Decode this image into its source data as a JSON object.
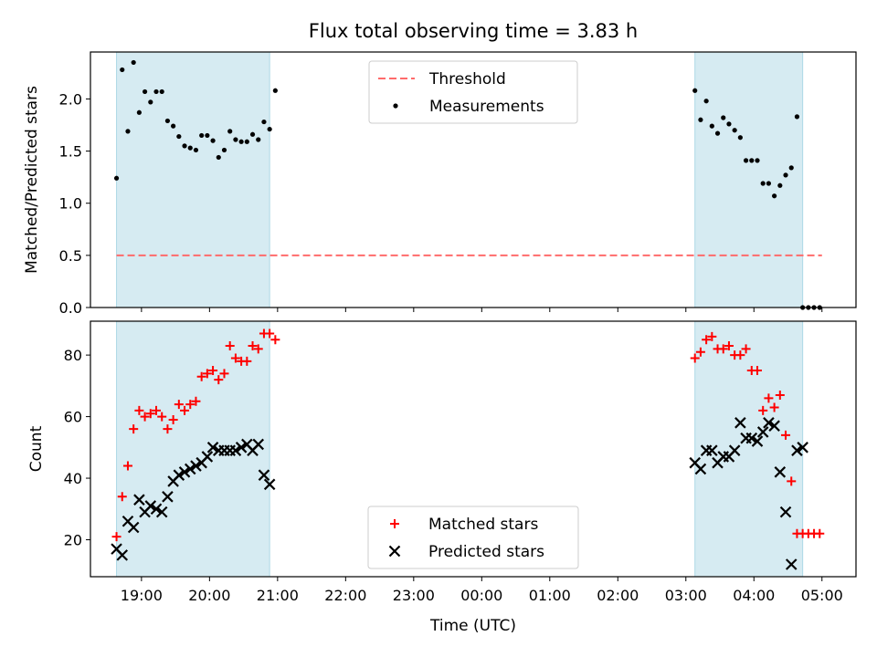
{
  "title": "Flux total observing time = 3.83 h",
  "chart_data": [
    {
      "type": "scatter",
      "ylabel": "Matched/Predicted stars",
      "xlabel": "",
      "ylim": [
        0,
        2.45
      ],
      "yticks": [
        "0.0",
        "0.5",
        "1.0",
        "1.5",
        "2.0"
      ],
      "x_hours_range": [
        "18:15",
        "05:30"
      ],
      "legend_position": "top-center",
      "threshold": {
        "name": "Threshold",
        "value": 0.5,
        "x_start": "18:38",
        "x_end": "05:00",
        "color": "#ff6b6b"
      },
      "series": [
        {
          "name": "Measurements",
          "color": "#000000",
          "marker": "dot",
          "x": [
            "18:38",
            "18:43",
            "18:48",
            "18:53",
            "18:58",
            "19:03",
            "19:08",
            "19:13",
            "19:18",
            "19:23",
            "19:28",
            "19:33",
            "19:38",
            "19:43",
            "19:48",
            "19:53",
            "19:58",
            "20:03",
            "20:08",
            "20:13",
            "20:18",
            "20:23",
            "20:28",
            "20:33",
            "20:38",
            "20:43",
            "20:48",
            "20:53",
            "20:58",
            "03:08",
            "03:13",
            "03:18",
            "03:23",
            "03:28",
            "03:33",
            "03:38",
            "03:43",
            "03:48",
            "03:53",
            "03:58",
            "04:03",
            "04:08",
            "04:13",
            "04:18",
            "04:23",
            "04:28",
            "04:33",
            "04:38",
            "04:43",
            "04:48",
            "04:53",
            "04:58"
          ],
          "y": [
            1.24,
            2.28,
            1.69,
            2.35,
            1.87,
            2.07,
            1.97,
            2.07,
            2.07,
            1.79,
            1.74,
            1.64,
            1.55,
            1.53,
            1.51,
            1.65,
            1.65,
            1.6,
            1.44,
            1.51,
            1.69,
            1.61,
            1.59,
            1.59,
            1.66,
            1.61,
            1.78,
            1.71,
            2.08,
            2.08,
            1.8,
            1.98,
            1.74,
            1.67,
            1.82,
            1.76,
            1.7,
            1.63,
            1.41,
            1.41,
            1.41,
            1.19,
            1.19,
            1.07,
            1.17,
            1.27,
            1.34,
            1.83,
            0.0,
            0.0,
            0.0,
            0.0
          ]
        }
      ]
    },
    {
      "type": "scatter",
      "ylabel": "Count",
      "xlabel": "Time (UTC)",
      "ylim": [
        8,
        91
      ],
      "yticks": [
        "20",
        "40",
        "60",
        "80"
      ],
      "xticks": [
        "19:00",
        "20:00",
        "21:00",
        "22:00",
        "23:00",
        "00:00",
        "01:00",
        "02:00",
        "03:00",
        "04:00",
        "05:00"
      ],
      "legend_position": "bottom-center",
      "series": [
        {
          "name": "Matched stars",
          "color": "#ff0000",
          "marker": "plus",
          "x": [
            "18:38",
            "18:43",
            "18:48",
            "18:53",
            "18:58",
            "19:03",
            "19:08",
            "19:13",
            "19:18",
            "19:23",
            "19:28",
            "19:33",
            "19:38",
            "19:43",
            "19:48",
            "19:53",
            "19:58",
            "20:03",
            "20:08",
            "20:13",
            "20:18",
            "20:23",
            "20:28",
            "20:33",
            "20:38",
            "20:43",
            "20:48",
            "20:53",
            "20:58",
            "03:08",
            "03:13",
            "03:18",
            "03:23",
            "03:28",
            "03:33",
            "03:38",
            "03:43",
            "03:48",
            "03:53",
            "03:58",
            "04:03",
            "04:08",
            "04:13",
            "04:18",
            "04:23",
            "04:28",
            "04:33",
            "04:38",
            "04:43",
            "04:48",
            "04:53",
            "04:58"
          ],
          "y": [
            21,
            34,
            44,
            56,
            62,
            60,
            61,
            62,
            60,
            56,
            59,
            64,
            62,
            64,
            65,
            73,
            74,
            75,
            72,
            74,
            83,
            79,
            78,
            78,
            83,
            82,
            87,
            87,
            85,
            79,
            81,
            85,
            86,
            82,
            82,
            83,
            80,
            80,
            82,
            75,
            75,
            62,
            66,
            63,
            67,
            54,
            39,
            22,
            22,
            22,
            22,
            22
          ]
        },
        {
          "name": "Predicted stars",
          "color": "#000000",
          "marker": "x",
          "x": [
            "18:38",
            "18:43",
            "18:48",
            "18:53",
            "18:58",
            "19:03",
            "19:08",
            "19:13",
            "19:18",
            "19:23",
            "19:28",
            "19:33",
            "19:38",
            "19:43",
            "19:48",
            "19:53",
            "19:58",
            "20:03",
            "20:08",
            "20:13",
            "20:18",
            "20:23",
            "20:28",
            "20:33",
            "20:38",
            "20:43",
            "20:48",
            "20:53",
            "03:08",
            "03:13",
            "03:18",
            "03:23",
            "03:28",
            "03:33",
            "03:38",
            "03:43",
            "03:48",
            "03:53",
            "03:58",
            "04:03",
            "04:08",
            "04:13",
            "04:18",
            "04:23",
            "04:28",
            "04:33",
            "04:38",
            "04:43"
          ],
          "y": [
            17,
            15,
            26,
            24,
            33,
            29,
            31,
            30,
            29,
            34,
            39,
            41,
            42,
            43,
            44,
            45,
            47,
            50,
            49,
            49,
            49,
            49,
            50,
            51,
            49,
            51,
            41,
            38,
            45,
            43,
            49,
            49,
            45,
            47,
            47,
            49,
            58,
            53,
            53,
            52,
            55,
            58,
            57,
            42,
            29,
            12,
            49,
            50
          ]
        }
      ]
    }
  ],
  "shaded_windows": [
    {
      "start": "18:38",
      "end": "20:53"
    },
    {
      "start": "03:08",
      "end": "04:43"
    }
  ]
}
